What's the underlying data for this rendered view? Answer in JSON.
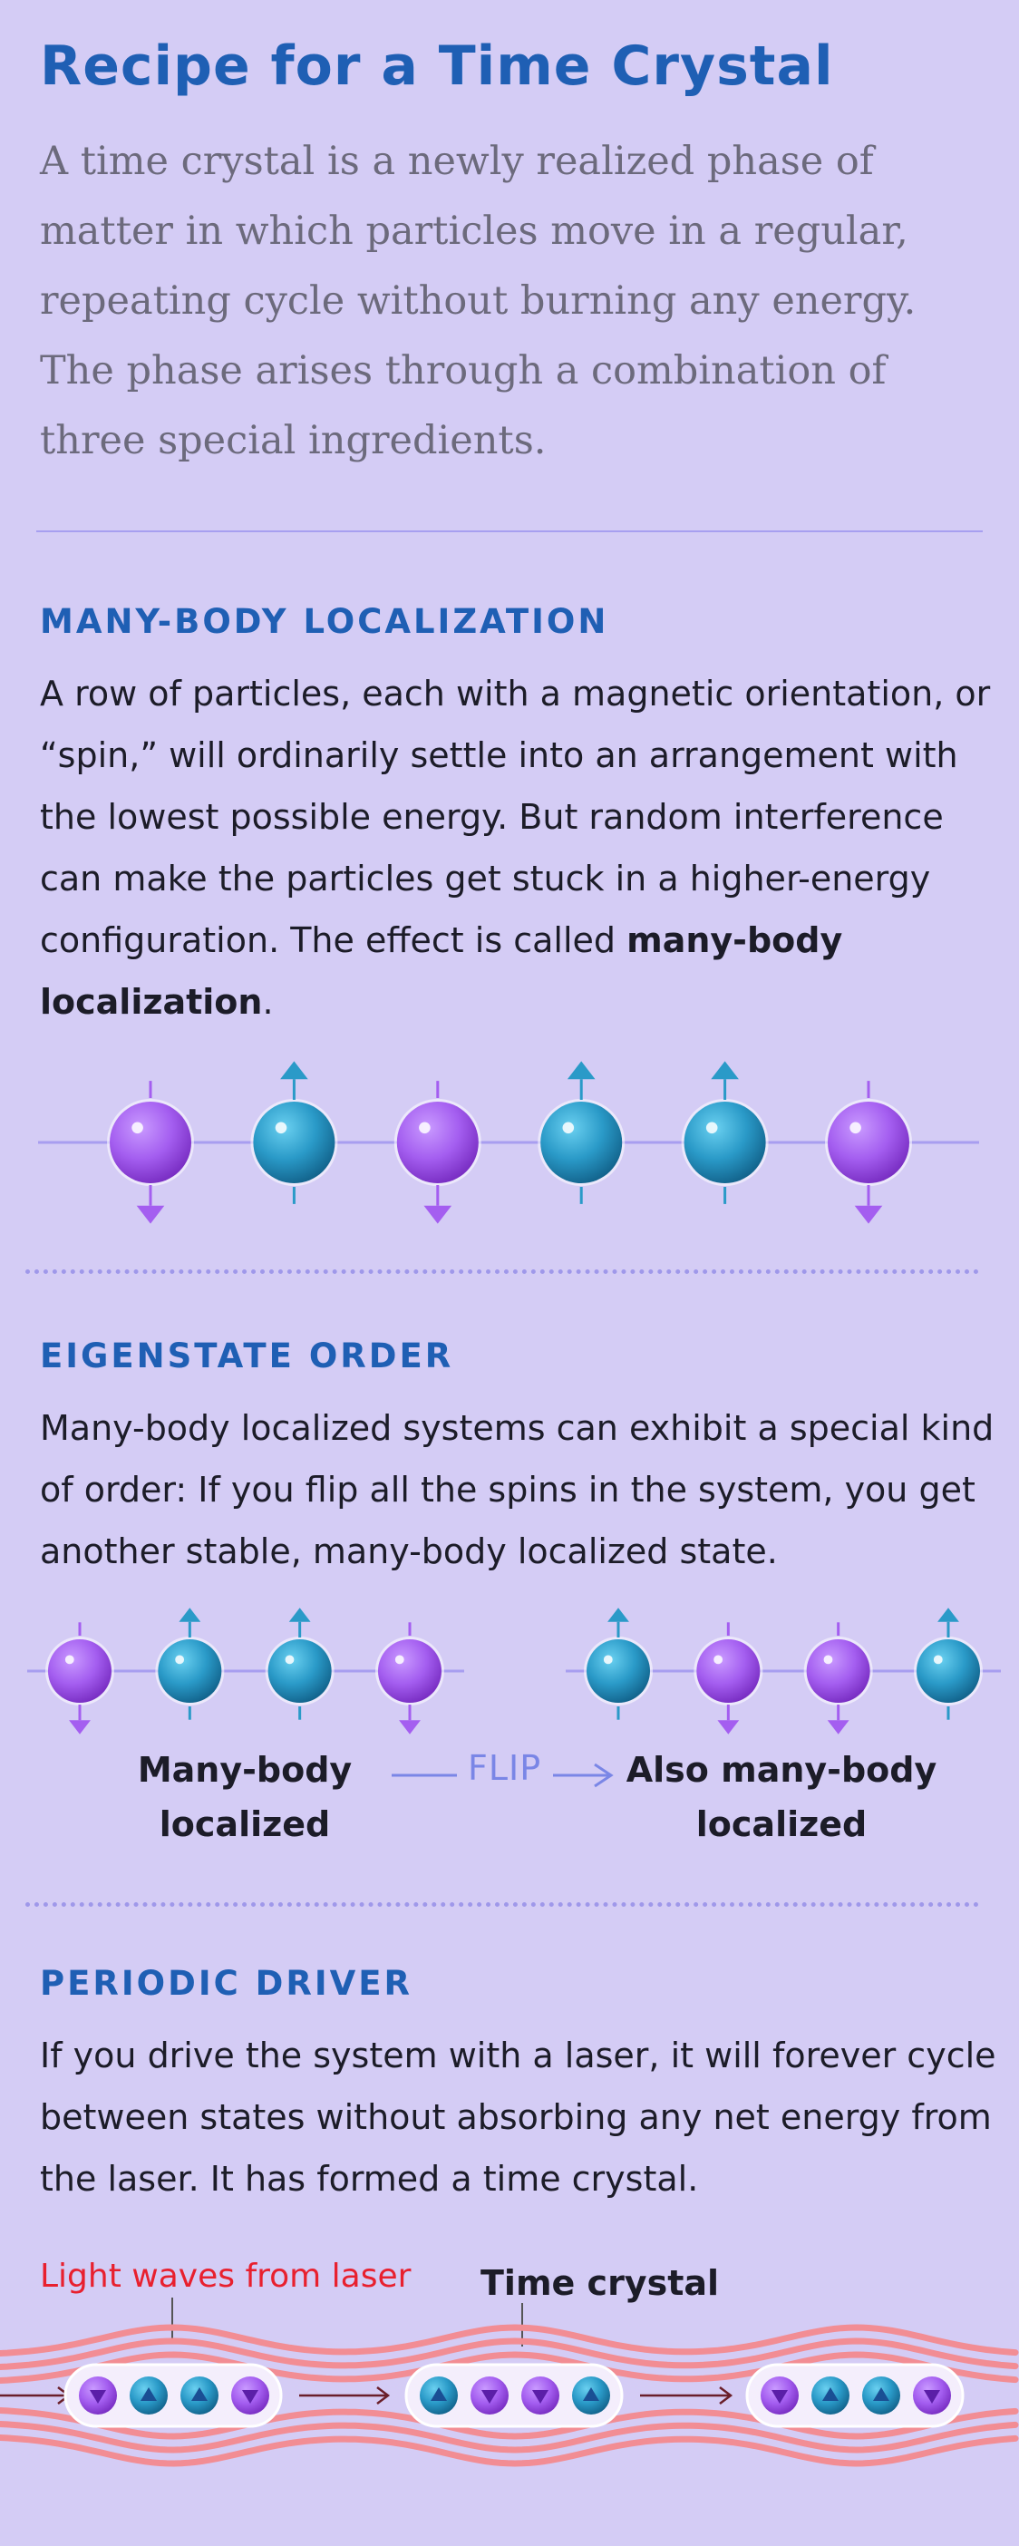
{
  "title": "Recipe for a Time Crystal",
  "intro": "A time crystal is a newly realized phase of matter in which particles move in a regular, repeating cycle without burning any energy. The phase arises through a combination of three special ingredients.",
  "sections": [
    {
      "heading": "MANY-BODY LOCALIZATION",
      "body_before": "A row of particles, each with a magnetic orientation, or “spin,” will ordinarily settle into an arrangement with the lowest possible energy. But random interference can make the particles get stuck in a higher-energy configuration. The effect is called ",
      "body_bold": "many-body localization",
      "body_after": ".",
      "spins": [
        "down",
        "up",
        "down",
        "up",
        "up",
        "down"
      ]
    },
    {
      "heading": "EIGENSTATE ORDER",
      "body": "Many-body localized systems can exhibit a special kind of order: If you flip all the spins in the system, you get another stable, many-body localized state.",
      "left_spins": [
        "down",
        "up",
        "up",
        "down"
      ],
      "right_spins": [
        "up",
        "down",
        "down",
        "up"
      ],
      "left_caption_line1": "Many-body",
      "left_caption_line2": "localized",
      "flip_label": "FLIP",
      "right_caption_line1": "Also many-body",
      "right_caption_line2": "localized"
    },
    {
      "heading": "PERIODIC DRIVER",
      "body": "If you drive the system with a laser, it will forever cycle between states without absorbing any net energy from the laser. It has formed a time crystal.",
      "laser_label": "Light waves from laser",
      "crystal_label": "Time crystal",
      "crystal_groups": [
        [
          "down",
          "up",
          "up",
          "down"
        ],
        [
          "up",
          "down",
          "down",
          "up"
        ],
        [
          "down",
          "up",
          "up",
          "down"
        ]
      ]
    }
  ],
  "colors": {
    "background": "#d4ccf5",
    "heading": "#1f5fb4",
    "intro_text": "#6c6a7c",
    "spin_down": "#a45ef0",
    "spin_up": "#2a9ac8",
    "laser": "#f28d94",
    "laser_label": "#e8202e",
    "flip": "#7a86e6"
  }
}
